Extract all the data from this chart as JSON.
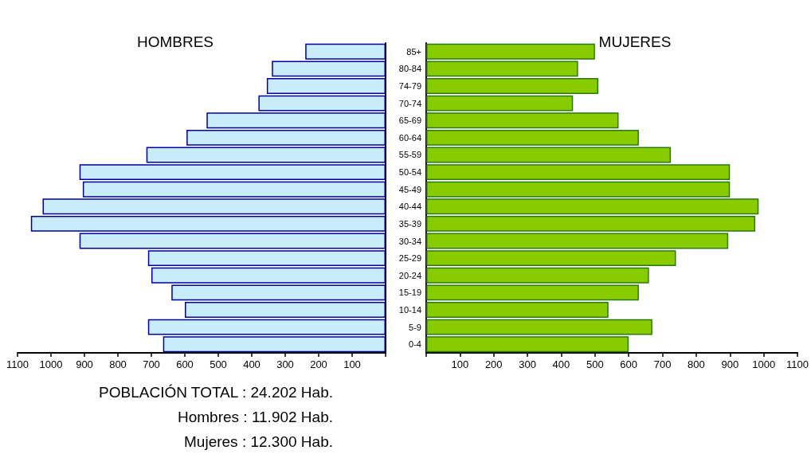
{
  "chart_data": [
    {
      "type": "bar",
      "orientation": "horizontal",
      "title": "HOMBRES",
      "categories": [
        null,
        null,
        null,
        null,
        null,
        null,
        null,
        null,
        null,
        null,
        null,
        null,
        null,
        null,
        null,
        null,
        null,
        null
      ],
      "values": [
        240,
        340,
        355,
        380,
        535,
        595,
        715,
        915,
        905,
        1025,
        1060,
        915,
        710,
        700,
        640,
        600,
        710,
        665
      ],
      "color": "#c8ecfa",
      "xlim": [
        1100,
        0
      ],
      "xticks": [
        1100,
        1000,
        900,
        800,
        700,
        600,
        500,
        400,
        300,
        200,
        100,
        {
          "value": 0,
          "label": null
        }
      ],
      "annotations": [
        "POBLACIÓN TOTAL : 24.202 Hab.",
        "Hombres : 11.902 Hab.",
        "Mujeres : 12.300 Hab."
      ]
    },
    {
      "type": "bar",
      "orientation": "horizontal",
      "title": "MUJERES",
      "categories": [
        "85+",
        "80-84",
        "74-79",
        "70-74",
        "65-69",
        "60-64",
        "55-59",
        "50-54",
        "45-49",
        "40-44",
        "35-39",
        "30-34",
        "25-29",
        "20-24",
        "15-19",
        "10-14",
        "5-9",
        "0-4"
      ],
      "values": [
        500,
        450,
        510,
        435,
        570,
        630,
        725,
        900,
        900,
        985,
        975,
        895,
        740,
        660,
        630,
        540,
        670,
        600
      ],
      "color": "#88cc00",
      "xlim": [
        0,
        1100
      ],
      "xticks": [
        {
          "value": 0,
          "label": null
        },
        100,
        200,
        300,
        400,
        500,
        600,
        700,
        800,
        900,
        1000,
        1100
      ]
    }
  ]
}
